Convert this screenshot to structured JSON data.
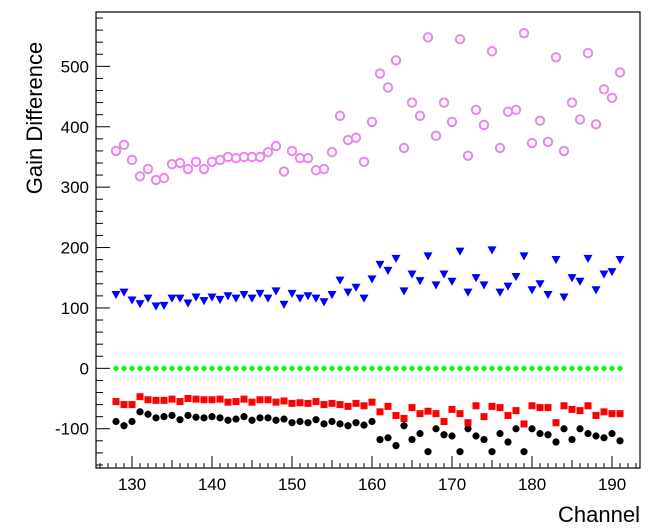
{
  "chart_data": {
    "type": "scatter",
    "xlabel": "Channel",
    "ylabel": "Gain Difference",
    "xlim": [
      125.5,
      193.5
    ],
    "ylim": [
      -165,
      590
    ],
    "x_ticks": [
      130,
      140,
      150,
      160,
      170,
      180,
      190
    ],
    "x_tick_labels": [
      "130",
      "140",
      "150",
      "160",
      "170",
      "180",
      "190"
    ],
    "y_ticks": [
      -100,
      0,
      100,
      200,
      300,
      400,
      500
    ],
    "y_tick_labels": [
      "-100",
      "0",
      "100",
      "200",
      "300",
      "400",
      "500"
    ],
    "grid": false,
    "legend": "none",
    "x": [
      128,
      129,
      130,
      131,
      132,
      133,
      134,
      135,
      136,
      137,
      138,
      139,
      140,
      141,
      142,
      143,
      144,
      145,
      146,
      147,
      148,
      149,
      150,
      151,
      152,
      153,
      154,
      155,
      156,
      157,
      158,
      159,
      160,
      161,
      162,
      163,
      164,
      165,
      166,
      167,
      168,
      169,
      170,
      171,
      172,
      173,
      174,
      175,
      176,
      177,
      178,
      179,
      180,
      181,
      182,
      183,
      184,
      185,
      186,
      187,
      188,
      189,
      190,
      191
    ],
    "series": [
      {
        "color": "#ee82ee",
        "marker": "open-circle",
        "values": [
          360,
          370,
          345,
          318,
          330,
          312,
          315,
          338,
          340,
          330,
          342,
          330,
          342,
          345,
          350,
          348,
          350,
          350,
          350,
          358,
          368,
          326,
          360,
          348,
          348,
          328,
          330,
          358,
          418,
          378,
          382,
          342,
          408,
          488,
          465,
          510,
          365,
          440,
          418,
          548,
          385,
          440,
          408,
          545,
          352,
          428,
          403,
          525,
          365,
          425,
          428,
          555,
          373,
          410,
          375,
          515,
          360,
          440,
          412,
          522,
          404,
          462,
          448,
          490
        ]
      },
      {
        "color": "#0000ff",
        "marker": "triangle-down",
        "values": [
          122,
          126,
          113,
          107,
          116,
          103,
          104,
          116,
          116,
          108,
          118,
          112,
          118,
          114,
          120,
          116,
          122,
          116,
          124,
          116,
          128,
          106,
          124,
          116,
          120,
          116,
          110,
          122,
          146,
          126,
          134,
          116,
          148,
          172,
          162,
          182,
          128,
          156,
          145,
          186,
          138,
          156,
          144,
          194,
          126,
          150,
          138,
          196,
          126,
          136,
          152,
          186,
          130,
          140,
          122,
          180,
          118,
          150,
          144,
          182,
          130,
          156,
          160,
          180
        ]
      },
      {
        "color": "#00ff00",
        "marker": "circle",
        "values": [
          0,
          0,
          0,
          0,
          0,
          0,
          0,
          0,
          0,
          0,
          0,
          0,
          0,
          0,
          0,
          0,
          0,
          0,
          0,
          0,
          0,
          0,
          0,
          0,
          0,
          0,
          0,
          0,
          0,
          0,
          0,
          0,
          0,
          0,
          0,
          0,
          0,
          0,
          0,
          0,
          0,
          0,
          0,
          0,
          0,
          0,
          0,
          0,
          0,
          0,
          0,
          0,
          0,
          0,
          0,
          0,
          0,
          0,
          0,
          0,
          0,
          0,
          0,
          0
        ]
      },
      {
        "color": "#ff0000",
        "marker": "square",
        "values": [
          -55,
          -60,
          -60,
          -47,
          -52,
          -53,
          -53,
          -51,
          -55,
          -50,
          -51,
          -52,
          -52,
          -51,
          -56,
          -55,
          -51,
          -56,
          -52,
          -52,
          -56,
          -54,
          -58,
          -57,
          -58,
          -55,
          -60,
          -58,
          -60,
          -63,
          -58,
          -62,
          -56,
          -72,
          -63,
          -78,
          -83,
          -65,
          -75,
          -71,
          -75,
          -88,
          -68,
          -75,
          -90,
          -62,
          -80,
          -63,
          -65,
          -78,
          -70,
          -92,
          -62,
          -65,
          -65,
          -90,
          -62,
          -68,
          -70,
          -62,
          -78,
          -72,
          -75,
          -75
        ]
      },
      {
        "color": "#000000",
        "marker": "circle",
        "values": [
          -88,
          -95,
          -88,
          -72,
          -76,
          -82,
          -80,
          -78,
          -85,
          -78,
          -81,
          -82,
          -80,
          -82,
          -86,
          -84,
          -80,
          -86,
          -82,
          -82,
          -86,
          -84,
          -90,
          -88,
          -90,
          -85,
          -92,
          -88,
          -92,
          -95,
          -90,
          -94,
          -88,
          -118,
          -115,
          -128,
          -95,
          -118,
          -108,
          -138,
          -100,
          -110,
          -112,
          -138,
          -100,
          -112,
          -118,
          -138,
          -108,
          -122,
          -100,
          -138,
          -100,
          -108,
          -110,
          -122,
          -100,
          -118,
          -100,
          -108,
          -112,
          -115,
          -108,
          -120
        ]
      }
    ]
  }
}
